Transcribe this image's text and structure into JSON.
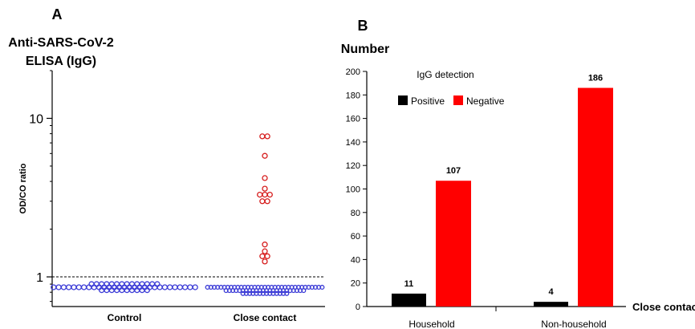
{
  "panel_a": {
    "letter": "A",
    "title_line1": "Anti-SARS-CoV-2",
    "title_line2": "ELISA (IgG)"
  },
  "panel_b": {
    "letter": "B"
  },
  "colors": {
    "control": "#3b3bd6",
    "positive_marker": "#d61c1c",
    "bar_positive": "#000000",
    "bar_negative": "#ff0000"
  },
  "chart_data": [
    {
      "type": "scatter",
      "ylabel": "OD/CO ratio",
      "yscale": "log",
      "ylim": [
        0.65,
        20
      ],
      "yticks": [
        {
          "value": 1,
          "label": "1"
        },
        {
          "value": 10,
          "label": "10"
        }
      ],
      "cutoff": 1,
      "categories": [
        "Control",
        "Close contact"
      ],
      "series": [
        {
          "category": "Control",
          "values": [
            0.86,
            0.86,
            0.86,
            0.86,
            0.86,
            0.86,
            0.86,
            0.86,
            0.86,
            0.86,
            0.86,
            0.86,
            0.86,
            0.86,
            0.86,
            0.86,
            0.86,
            0.86,
            0.86,
            0.86,
            0.86,
            0.86,
            0.86,
            0.86,
            0.86,
            0.86,
            0.86,
            0.86,
            0.86,
            0.9,
            0.9,
            0.9,
            0.9,
            0.9,
            0.9,
            0.9,
            0.9,
            0.9,
            0.9,
            0.9,
            0.9,
            0.9,
            0.9,
            0.825,
            0.825,
            0.825,
            0.825,
            0.825,
            0.825,
            0.825,
            0.825,
            0.825,
            0.825
          ]
        },
        {
          "category": "Close contact",
          "values": [
            7.7,
            7.7,
            5.8,
            4.2,
            3.6,
            3.3,
            3.3,
            3.3,
            3.0,
            3.0,
            1.6,
            1.45,
            1.35,
            1.35,
            1.25
          ]
        }
      ]
    },
    {
      "type": "bar",
      "ylabel": "Number",
      "xlabel": "Close contact",
      "ylim": [
        0,
        200
      ],
      "yticks": [
        0,
        20,
        40,
        60,
        80,
        100,
        120,
        140,
        160,
        180,
        200
      ],
      "categories": [
        "Household",
        "Non-household"
      ],
      "legend_title": "IgG detection",
      "series": [
        {
          "name": "Positive",
          "values": [
            11,
            4
          ]
        },
        {
          "name": "Negative",
          "values": [
            107,
            186
          ]
        }
      ],
      "data_labels": [
        [
          "11",
          "107"
        ],
        [
          "4",
          "186"
        ]
      ]
    }
  ]
}
